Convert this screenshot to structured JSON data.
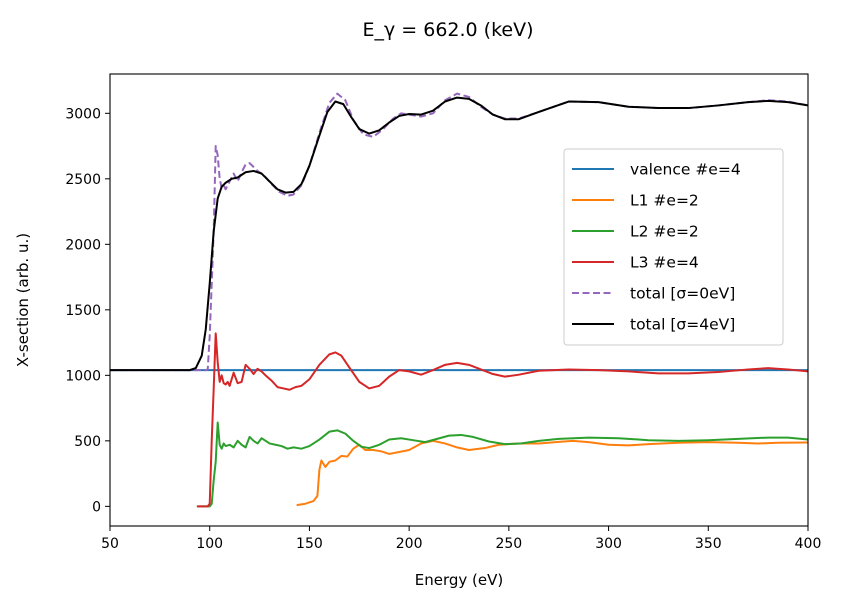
{
  "chart_data": {
    "type": "line",
    "title": "E_γ = 662.0 (keV)",
    "xlabel": "Energy (eV)",
    "ylabel": "X-section (arb. u.)",
    "xlim": [
      50,
      400
    ],
    "ylim": [
      -150,
      3300
    ],
    "xticks": [
      50,
      100,
      150,
      200,
      250,
      300,
      350,
      400
    ],
    "yticks": [
      0,
      500,
      1000,
      1500,
      2000,
      2500,
      3000
    ],
    "grid": false,
    "legend_position": "center-right",
    "series": [
      {
        "name": "valence #e=4",
        "color": "#1f77b4",
        "dash": "solid",
        "points": [
          [
            50,
            1040
          ],
          [
            400,
            1040
          ]
        ]
      },
      {
        "name": "L1 #e=2",
        "color": "#ff7f0e",
        "dash": "solid",
        "points": [
          [
            144,
            10
          ],
          [
            148,
            20
          ],
          [
            152,
            40
          ],
          [
            154,
            80
          ],
          [
            155,
            280
          ],
          [
            156,
            350
          ],
          [
            158,
            300
          ],
          [
            160,
            340
          ],
          [
            163,
            350
          ],
          [
            166,
            385
          ],
          [
            169,
            380
          ],
          [
            172,
            440
          ],
          [
            175,
            470
          ],
          [
            178,
            430
          ],
          [
            182,
            430
          ],
          [
            186,
            420
          ],
          [
            190,
            400
          ],
          [
            195,
            415
          ],
          [
            200,
            430
          ],
          [
            206,
            480
          ],
          [
            212,
            500
          ],
          [
            218,
            480
          ],
          [
            224,
            450
          ],
          [
            230,
            430
          ],
          [
            238,
            445
          ],
          [
            245,
            470
          ],
          [
            255,
            480
          ],
          [
            265,
            480
          ],
          [
            275,
            492
          ],
          [
            282,
            500
          ],
          [
            290,
            490
          ],
          [
            300,
            470
          ],
          [
            310,
            465
          ],
          [
            320,
            475
          ],
          [
            335,
            485
          ],
          [
            350,
            490
          ],
          [
            365,
            485
          ],
          [
            375,
            480
          ],
          [
            385,
            485
          ],
          [
            400,
            487
          ]
        ]
      },
      {
        "name": "L2 #e=2",
        "color": "#2ca02c",
        "dash": "solid",
        "points": [
          [
            94,
            0
          ],
          [
            100,
            0
          ],
          [
            101,
            20
          ],
          [
            102,
            200
          ],
          [
            103,
            340
          ],
          [
            104,
            640
          ],
          [
            105,
            470
          ],
          [
            106,
            440
          ],
          [
            107,
            480
          ],
          [
            108,
            460
          ],
          [
            110,
            470
          ],
          [
            112,
            450
          ],
          [
            114,
            500
          ],
          [
            116,
            470
          ],
          [
            118,
            450
          ],
          [
            120,
            530
          ],
          [
            122,
            500
          ],
          [
            124,
            480
          ],
          [
            126,
            520
          ],
          [
            128,
            500
          ],
          [
            130,
            480
          ],
          [
            133,
            470
          ],
          [
            136,
            460
          ],
          [
            139,
            440
          ],
          [
            142,
            450
          ],
          [
            146,
            440
          ],
          [
            150,
            460
          ],
          [
            155,
            510
          ],
          [
            160,
            570
          ],
          [
            164,
            580
          ],
          [
            168,
            555
          ],
          [
            172,
            500
          ],
          [
            176,
            455
          ],
          [
            180,
            445
          ],
          [
            185,
            470
          ],
          [
            190,
            510
          ],
          [
            196,
            520
          ],
          [
            202,
            505
          ],
          [
            208,
            490
          ],
          [
            214,
            515
          ],
          [
            220,
            540
          ],
          [
            226,
            545
          ],
          [
            232,
            530
          ],
          [
            240,
            495
          ],
          [
            248,
            475
          ],
          [
            256,
            480
          ],
          [
            265,
            500
          ],
          [
            275,
            515
          ],
          [
            290,
            525
          ],
          [
            305,
            520
          ],
          [
            320,
            505
          ],
          [
            335,
            500
          ],
          [
            350,
            505
          ],
          [
            365,
            515
          ],
          [
            380,
            525
          ],
          [
            390,
            525
          ],
          [
            400,
            510
          ]
        ]
      },
      {
        "name": "L3 #e=4",
        "color": "#d62728",
        "dash": "solid",
        "points": [
          [
            94,
            0
          ],
          [
            99,
            0
          ],
          [
            100,
            20
          ],
          [
            101,
            500
          ],
          [
            102,
            900
          ],
          [
            103,
            1320
          ],
          [
            104,
            1100
          ],
          [
            105,
            950
          ],
          [
            106,
            1000
          ],
          [
            107,
            940
          ],
          [
            108,
            930
          ],
          [
            109,
            950
          ],
          [
            110,
            920
          ],
          [
            112,
            1020
          ],
          [
            114,
            940
          ],
          [
            116,
            950
          ],
          [
            118,
            1080
          ],
          [
            120,
            1050
          ],
          [
            122,
            1010
          ],
          [
            124,
            1050
          ],
          [
            126,
            1030
          ],
          [
            128,
            1000
          ],
          [
            131,
            960
          ],
          [
            134,
            910
          ],
          [
            137,
            900
          ],
          [
            140,
            890
          ],
          [
            143,
            910
          ],
          [
            146,
            920
          ],
          [
            150,
            970
          ],
          [
            155,
            1080
          ],
          [
            160,
            1160
          ],
          [
            163,
            1175
          ],
          [
            166,
            1150
          ],
          [
            170,
            1060
          ],
          [
            175,
            950
          ],
          [
            180,
            900
          ],
          [
            185,
            920
          ],
          [
            190,
            990
          ],
          [
            195,
            1040
          ],
          [
            200,
            1030
          ],
          [
            206,
            1005
          ],
          [
            212,
            1040
          ],
          [
            218,
            1080
          ],
          [
            224,
            1095
          ],
          [
            230,
            1080
          ],
          [
            236,
            1045
          ],
          [
            242,
            1010
          ],
          [
            248,
            990
          ],
          [
            255,
            1005
          ],
          [
            265,
            1035
          ],
          [
            280,
            1045
          ],
          [
            295,
            1040
          ],
          [
            310,
            1030
          ],
          [
            325,
            1015
          ],
          [
            340,
            1015
          ],
          [
            355,
            1025
          ],
          [
            370,
            1045
          ],
          [
            380,
            1055
          ],
          [
            390,
            1045
          ],
          [
            400,
            1030
          ]
        ]
      },
      {
        "name": "total [σ=0eV]",
        "color": "#9467bd",
        "dash": "dashed",
        "points": [
          [
            50,
            1040
          ],
          [
            98,
            1040
          ],
          [
            99,
            1045
          ],
          [
            100,
            1300
          ],
          [
            101,
            1700
          ],
          [
            102,
            2100
          ],
          [
            103,
            2750
          ],
          [
            104,
            2680
          ],
          [
            105,
            2500
          ],
          [
            106,
            2430
          ],
          [
            107,
            2450
          ],
          [
            108,
            2420
          ],
          [
            110,
            2480
          ],
          [
            112,
            2540
          ],
          [
            114,
            2480
          ],
          [
            116,
            2550
          ],
          [
            118,
            2610
          ],
          [
            120,
            2620
          ],
          [
            122,
            2590
          ],
          [
            124,
            2560
          ],
          [
            127,
            2530
          ],
          [
            131,
            2460
          ],
          [
            135,
            2400
          ],
          [
            139,
            2370
          ],
          [
            142,
            2380
          ],
          [
            146,
            2450
          ],
          [
            150,
            2600
          ],
          [
            155,
            2850
          ],
          [
            160,
            3080
          ],
          [
            164,
            3150
          ],
          [
            168,
            3100
          ],
          [
            172,
            2950
          ],
          [
            177,
            2840
          ],
          [
            182,
            2820
          ],
          [
            187,
            2880
          ],
          [
            192,
            2960
          ],
          [
            196,
            3000
          ],
          [
            200,
            2990
          ],
          [
            206,
            2975
          ],
          [
            212,
            3000
          ],
          [
            218,
            3100
          ],
          [
            224,
            3150
          ],
          [
            230,
            3125
          ],
          [
            236,
            3050
          ],
          [
            242,
            2990
          ],
          [
            248,
            2960
          ],
          [
            255,
            2960
          ],
          [
            265,
            3010
          ],
          [
            280,
            3090
          ],
          [
            295,
            3085
          ],
          [
            310,
            3050
          ],
          [
            325,
            3040
          ],
          [
            340,
            3040
          ],
          [
            355,
            3060
          ],
          [
            370,
            3085
          ],
          [
            380,
            3100
          ],
          [
            390,
            3090
          ],
          [
            400,
            3060
          ]
        ]
      },
      {
        "name": "total [σ=4eV]",
        "color": "#000000",
        "dash": "solid",
        "points": [
          [
            50,
            1040
          ],
          [
            90,
            1040
          ],
          [
            93,
            1055
          ],
          [
            96,
            1150
          ],
          [
            98,
            1350
          ],
          [
            100,
            1700
          ],
          [
            102,
            2100
          ],
          [
            104,
            2350
          ],
          [
            106,
            2440
          ],
          [
            108,
            2470
          ],
          [
            111,
            2500
          ],
          [
            114,
            2510
          ],
          [
            118,
            2550
          ],
          [
            122,
            2560
          ],
          [
            126,
            2540
          ],
          [
            130,
            2480
          ],
          [
            134,
            2420
          ],
          [
            138,
            2395
          ],
          [
            142,
            2400
          ],
          [
            146,
            2460
          ],
          [
            150,
            2600
          ],
          [
            155,
            2830
          ],
          [
            159,
            3010
          ],
          [
            163,
            3090
          ],
          [
            167,
            3070
          ],
          [
            171,
            2970
          ],
          [
            175,
            2880
          ],
          [
            180,
            2845
          ],
          [
            185,
            2870
          ],
          [
            190,
            2930
          ],
          [
            195,
            2980
          ],
          [
            200,
            2995
          ],
          [
            206,
            2990
          ],
          [
            212,
            3020
          ],
          [
            218,
            3090
          ],
          [
            224,
            3120
          ],
          [
            230,
            3110
          ],
          [
            236,
            3060
          ],
          [
            242,
            2990
          ],
          [
            248,
            2955
          ],
          [
            255,
            2955
          ],
          [
            265,
            3010
          ],
          [
            280,
            3090
          ],
          [
            295,
            3085
          ],
          [
            310,
            3050
          ],
          [
            325,
            3040
          ],
          [
            340,
            3040
          ],
          [
            355,
            3060
          ],
          [
            370,
            3085
          ],
          [
            380,
            3095
          ],
          [
            390,
            3085
          ],
          [
            400,
            3060
          ]
        ]
      }
    ]
  }
}
